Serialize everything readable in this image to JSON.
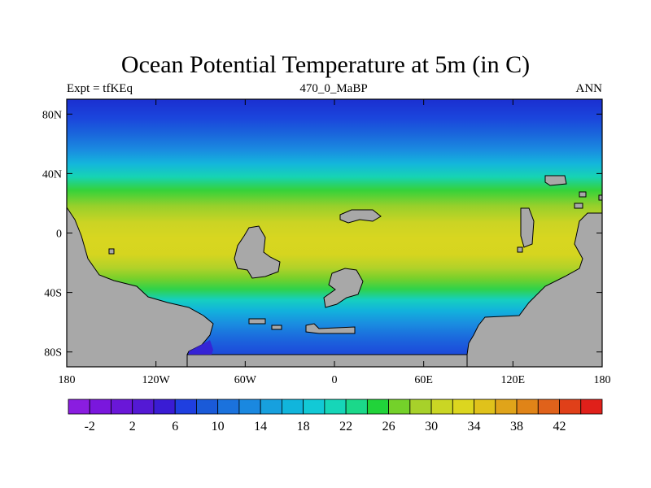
{
  "header": {
    "title": "Ocean Potential Temperature at 5m (in C)",
    "left_label": "Expt = tfKEq",
    "center_label": "470_0_MaBP",
    "right_label": "ANN"
  },
  "map": {
    "projection": "cylindrical-equidistant",
    "lon_range": [
      -180,
      180
    ],
    "lat_range": [
      -90,
      90
    ],
    "land_color": "#a8a8a8",
    "lat_ticks": [
      {
        "value": 80,
        "label": "80N"
      },
      {
        "value": 40,
        "label": "40N"
      },
      {
        "value": 0,
        "label": "0"
      },
      {
        "value": -40,
        "label": "40S"
      },
      {
        "value": -80,
        "label": "80S"
      }
    ],
    "lon_ticks": [
      {
        "value": -180,
        "label": "180"
      },
      {
        "value": -120,
        "label": "120W"
      },
      {
        "value": -60,
        "label": "60W"
      },
      {
        "value": 0,
        "label": "0"
      },
      {
        "value": 60,
        "label": "60E"
      },
      {
        "value": 120,
        "label": "120E"
      },
      {
        "value": 180,
        "label": "180"
      }
    ]
  },
  "colorbar": {
    "colors": [
      "#8a1de0",
      "#7a17dd",
      "#6a17d8",
      "#5419d4",
      "#3a1cd4",
      "#1f3fe0",
      "#1a5ad8",
      "#1b72dd",
      "#1a88e0",
      "#17a0de",
      "#11b5dc",
      "#12c9d6",
      "#16d6b8",
      "#1bd88a",
      "#21d33a",
      "#74d12a",
      "#a7d12a",
      "#cad624",
      "#dcd61f",
      "#e0c21b",
      "#e0a41a",
      "#e08418",
      "#e0621b",
      "#e04019",
      "#e0201a"
    ],
    "labels": [
      "-2",
      "2",
      "6",
      "10",
      "14",
      "18",
      "22",
      "26",
      "30",
      "34",
      "38",
      "42"
    ]
  }
}
